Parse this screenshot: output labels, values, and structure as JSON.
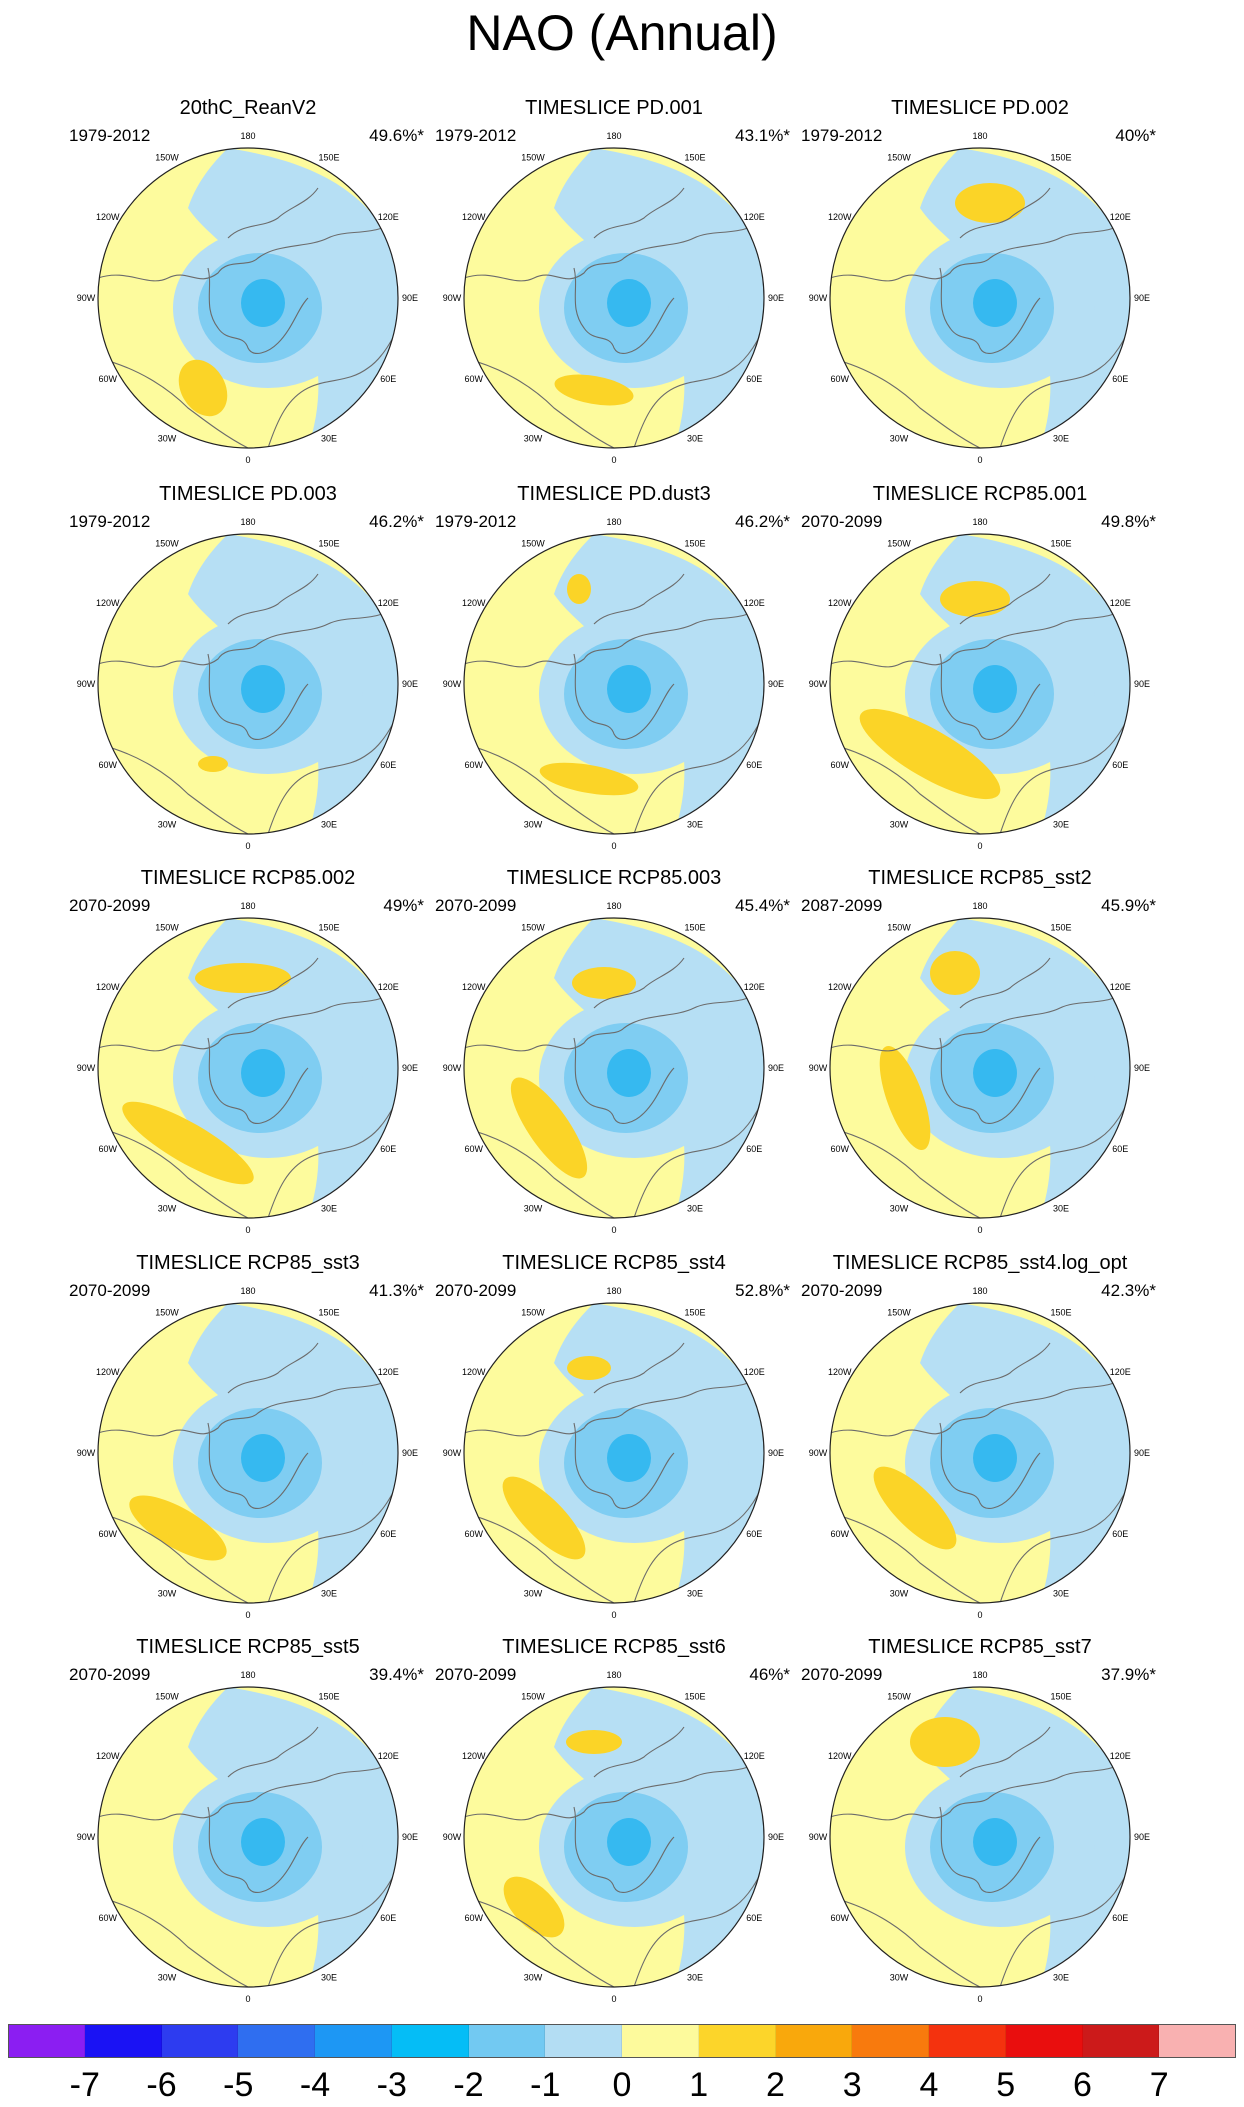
{
  "title": "NAO (Annual)",
  "map": {
    "longitude_labels": [
      "180",
      "150E",
      "120E",
      "90E",
      "60E",
      "30E",
      "0",
      "30W",
      "60W",
      "90W",
      "120W",
      "150W"
    ],
    "colors": {
      "neg3": "#36b9f0",
      "neg2": "#7fcdf2",
      "neg1": "#b6dff4",
      "pos1": "#fdfb9d",
      "pos2": "#fbd427",
      "coast": "#6b6b6b",
      "border": "#222222"
    }
  },
  "panels": [
    {
      "title": "20thC_ReanV2",
      "period": "1979-2012",
      "variance": "49.6%*"
    },
    {
      "title": "TIMESLICE PD.001",
      "period": "1979-2012",
      "variance": "43.1%*"
    },
    {
      "title": "TIMESLICE PD.002",
      "period": "1979-2012",
      "variance": "40%*"
    },
    {
      "title": "TIMESLICE PD.003",
      "period": "1979-2012",
      "variance": "46.2%*"
    },
    {
      "title": "TIMESLICE PD.dust3",
      "period": "1979-2012",
      "variance": "46.2%*"
    },
    {
      "title": "TIMESLICE RCP85.001",
      "period": "2070-2099",
      "variance": "49.8%*"
    },
    {
      "title": "TIMESLICE RCP85.002",
      "period": "2070-2099",
      "variance": "49%*"
    },
    {
      "title": "TIMESLICE RCP85.003",
      "period": "2070-2099",
      "variance": "45.4%*"
    },
    {
      "title": "TIMESLICE RCP85_sst2",
      "period": "2087-2099",
      "variance": "45.9%*"
    },
    {
      "title": "TIMESLICE RCP85_sst3",
      "period": "2070-2099",
      "variance": "41.3%*"
    },
    {
      "title": "TIMESLICE RCP85_sst4",
      "period": "2070-2099",
      "variance": "52.8%*"
    },
    {
      "title": "TIMESLICE RCP85_sst4.log_opt",
      "period": "2070-2099",
      "variance": "42.3%*"
    },
    {
      "title": "TIMESLICE RCP85_sst5",
      "period": "2070-2099",
      "variance": "39.4%*"
    },
    {
      "title": "TIMESLICE RCP85_sst6",
      "period": "2070-2099",
      "variance": "46%*"
    },
    {
      "title": "TIMESLICE RCP85_sst7",
      "period": "2070-2099",
      "variance": "37.9%*"
    }
  ],
  "colorbar": {
    "labels": [
      "-7",
      "-6",
      "-5",
      "-4",
      "-3",
      "-2",
      "-1",
      "0",
      "1",
      "2",
      "3",
      "4",
      "5",
      "6",
      "7"
    ],
    "colors": [
      "#8b1ef2",
      "#1a12f4",
      "#2d3cf0",
      "#2f6ef0",
      "#1d97f4",
      "#05bdf6",
      "#72c9f2",
      "#b3ddf3",
      "#fdfa9c",
      "#fcd52a",
      "#f9a80c",
      "#f87a0d",
      "#f4320e",
      "#e90e0e",
      "#cc1a1a",
      "#f9b1b1"
    ]
  }
}
